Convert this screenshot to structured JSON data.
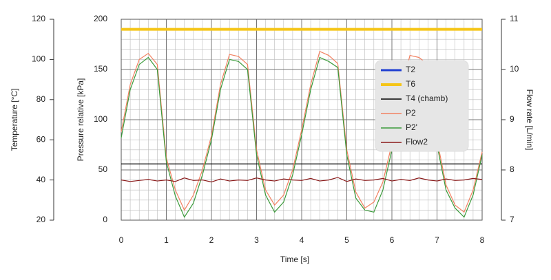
{
  "chart_data": {
    "type": "line",
    "xlabel": "Time [s]",
    "ylabel": "Pressure relative [kPa]",
    "y2label": "Flow rate [L/min]",
    "y3label": "Temperature [°C]",
    "x": [
      0,
      0.2,
      0.4,
      0.6,
      0.8,
      1,
      1.2,
      1.4,
      1.6,
      1.8,
      2,
      2.2,
      2.4,
      2.6,
      2.8,
      3,
      3.2,
      3.4,
      3.6,
      3.8,
      4,
      4.2,
      4.4,
      4.6,
      4.8,
      5,
      5.2,
      5.4,
      5.6,
      5.8,
      6,
      6.2,
      6.4,
      6.6,
      6.8,
      7,
      7.2,
      7.4,
      7.6,
      7.8,
      8
    ],
    "xlim": [
      0,
      8
    ],
    "xticks": [
      0,
      1,
      2,
      3,
      4,
      5,
      6,
      7,
      8
    ],
    "ylim": [
      0,
      200
    ],
    "yticks": [
      0,
      50,
      100,
      150,
      200
    ],
    "y2lim": [
      7,
      11
    ],
    "y2ticks": [
      7,
      8,
      9,
      10,
      11
    ],
    "y3lim": [
      20,
      120
    ],
    "y3ticks": [
      20,
      40,
      60,
      80,
      100,
      120
    ],
    "grid": true,
    "minor_grid": true,
    "legend": "upper right",
    "series": [
      {
        "name": "T2",
        "color": "#1f3fd1",
        "axis": "y3",
        "x": [
          0,
          8
        ],
        "values": [
          115,
          115
        ]
      },
      {
        "name": "T6",
        "color": "#f5c518",
        "axis": "y3",
        "x": [
          0,
          8
        ],
        "values": [
          115,
          115
        ]
      },
      {
        "name": "T4 (chamb)",
        "color": "#000000",
        "axis": "y3",
        "x": [
          0,
          8
        ],
        "values": [
          48,
          48
        ]
      },
      {
        "name": "P2",
        "color": "#f28060",
        "values": [
          88,
          135,
          160,
          166,
          155,
          62,
          30,
          10,
          25,
          50,
          84,
          135,
          165,
          163,
          155,
          70,
          30,
          15,
          25,
          50,
          90,
          135,
          168,
          164,
          156,
          70,
          28,
          12,
          18,
          38,
          76,
          130,
          164,
          162,
          155,
          80,
          35,
          15,
          8,
          30,
          68
        ]
      },
      {
        "name": "P2'",
        "color": "#3a9a3a",
        "values": [
          82,
          130,
          155,
          162,
          150,
          58,
          24,
          3,
          17,
          45,
          80,
          130,
          160,
          158,
          150,
          65,
          25,
          8,
          18,
          45,
          85,
          130,
          162,
          158,
          152,
          65,
          22,
          10,
          8,
          30,
          70,
          125,
          158,
          155,
          150,
          75,
          30,
          12,
          3,
          25,
          65
        ]
      },
      {
        "name": "Flow2",
        "color": "#8b1a1a",
        "axis": "y2",
        "values": [
          7.8,
          7.77,
          7.79,
          7.81,
          7.78,
          7.8,
          7.77,
          7.84,
          7.79,
          7.8,
          7.76,
          7.82,
          7.78,
          7.8,
          7.79,
          7.84,
          7.8,
          7.78,
          7.82,
          7.8,
          7.79,
          7.83,
          7.78,
          7.8,
          7.85,
          7.77,
          7.82,
          7.79,
          7.8,
          7.83,
          7.78,
          7.81,
          7.79,
          7.84,
          7.8,
          7.78,
          7.82,
          7.79,
          7.8,
          7.83,
          7.81
        ]
      }
    ]
  }
}
